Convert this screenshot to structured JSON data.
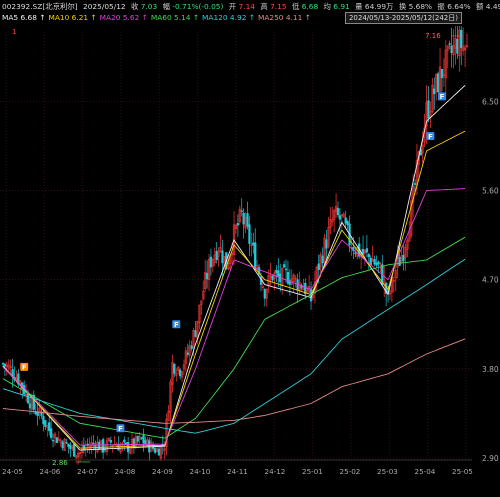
{
  "header": {
    "symbol": "002392.SZ[北京利尔]",
    "date": "2025/05/12",
    "close_label": "收",
    "close": "7.03",
    "change_label": "幅",
    "change": "-0.71%(-0.05)",
    "open_label": "开",
    "open": "7.14",
    "high_label": "高",
    "high": "7.15",
    "low_label": "低",
    "low": "6.68",
    "avg_label": "均",
    "avg": "6.91",
    "volume_label": "量",
    "volume": "64.99万",
    "turnover_label": "换",
    "turnover": "5.68%",
    "amplitude_label": "振",
    "amplitude": "6.64%",
    "amount_label": "额",
    "amount": "4.49亿",
    "range": "2024/05/13-2025/05/12(242日)"
  },
  "ma_legend": [
    {
      "label": "MA5",
      "value": "6.68",
      "arrow": "↑",
      "color": "#f0f0f0"
    },
    {
      "label": "MA10",
      "value": "6.21",
      "arrow": "↑",
      "color": "#f5d300"
    },
    {
      "label": "MA20",
      "value": "5.62",
      "arrow": "↑",
      "color": "#e040e0"
    },
    {
      "label": "MA60",
      "value": "5.14",
      "arrow": "↑",
      "color": "#3cdc50"
    },
    {
      "label": "MA120",
      "value": "4.92",
      "arrow": "↑",
      "color": "#2fd0d8"
    },
    {
      "label": "MA250",
      "value": "4.11",
      "arrow": "↑",
      "color": "#e48a8a"
    }
  ],
  "colors": {
    "up": "#ff3838",
    "down": "#20c8d8",
    "grid": "#2a0a0a",
    "axis_text": "#aaaaaa"
  },
  "annotations": {
    "high": "7.16",
    "low": "2.86",
    "top_left_marker": "1"
  },
  "signal_badge": "F",
  "chart_data": {
    "type": "candlestick",
    "x_ticks": [
      "24-05",
      "24-06",
      "24-07",
      "24-08",
      "24-09",
      "24-10",
      "24-11",
      "24-12",
      "25-01",
      "25-02",
      "25-03",
      "25-04",
      "25-05"
    ],
    "y_ticks": [
      "6.50",
      "5.60",
      "4.70",
      "3.80",
      "2.90"
    ],
    "y_tick_values": [
      6.5,
      5.6,
      4.7,
      3.8,
      2.9
    ],
    "ylim": [
      2.9,
      7.2
    ],
    "close_path": [
      [
        0,
        3.85
      ],
      [
        4,
        3.8
      ],
      [
        8,
        3.7
      ],
      [
        12,
        3.55
      ],
      [
        16,
        3.4
      ],
      [
        20,
        3.32
      ],
      [
        24,
        3.18
      ],
      [
        28,
        3.1
      ],
      [
        32,
        3.05
      ],
      [
        36,
        2.98
      ],
      [
        40,
        2.95
      ],
      [
        44,
        3.02
      ],
      [
        48,
        3.05
      ],
      [
        52,
        3.0
      ],
      [
        56,
        3.06
      ],
      [
        60,
        3.03
      ],
      [
        64,
        3.0
      ],
      [
        68,
        3.04
      ],
      [
        72,
        3.08
      ],
      [
        76,
        3.02
      ],
      [
        80,
        2.98
      ],
      [
        84,
        3.04
      ],
      [
        88,
        3.85
      ],
      [
        92,
        3.8
      ],
      [
        96,
        3.95
      ],
      [
        100,
        4.2
      ],
      [
        104,
        4.6
      ],
      [
        108,
        4.9
      ],
      [
        112,
        5.05
      ],
      [
        116,
        4.85
      ],
      [
        120,
        5.15
      ],
      [
        124,
        5.35
      ],
      [
        128,
        5.1
      ],
      [
        132,
        4.85
      ],
      [
        136,
        4.6
      ],
      [
        140,
        4.75
      ],
      [
        144,
        4.7
      ],
      [
        148,
        4.75
      ],
      [
        152,
        4.68
      ],
      [
        156,
        4.65
      ],
      [
        160,
        4.5
      ],
      [
        164,
        4.85
      ],
      [
        168,
        5.1
      ],
      [
        172,
        5.35
      ],
      [
        176,
        5.3
      ],
      [
        180,
        5.1
      ],
      [
        184,
        5.0
      ],
      [
        188,
        4.95
      ],
      [
        192,
        4.9
      ],
      [
        196,
        4.8
      ],
      [
        200,
        4.5
      ],
      [
        204,
        4.8
      ],
      [
        208,
        5.0
      ],
      [
        212,
        5.4
      ],
      [
        216,
        5.9
      ],
      [
        220,
        6.4
      ],
      [
        224,
        6.6
      ],
      [
        228,
        6.8
      ],
      [
        232,
        6.95
      ],
      [
        236,
        7.1
      ],
      [
        241,
        7.03
      ]
    ],
    "ma_paths": {
      "MA5": [
        [
          0,
          3.83
        ],
        [
          40,
          2.98
        ],
        [
          84,
          3.02
        ],
        [
          100,
          4.05
        ],
        [
          120,
          5.1
        ],
        [
          136,
          4.65
        ],
        [
          160,
          4.52
        ],
        [
          176,
          5.28
        ],
        [
          200,
          4.55
        ],
        [
          220,
          6.3
        ],
        [
          241,
          6.68
        ]
      ],
      "MA10": [
        [
          0,
          3.82
        ],
        [
          40,
          3.0
        ],
        [
          84,
          3.03
        ],
        [
          100,
          3.95
        ],
        [
          120,
          5.05
        ],
        [
          136,
          4.7
        ],
        [
          160,
          4.55
        ],
        [
          176,
          5.2
        ],
        [
          200,
          4.6
        ],
        [
          220,
          6.0
        ],
        [
          241,
          6.21
        ]
      ],
      "MA20": [
        [
          0,
          3.82
        ],
        [
          40,
          3.03
        ],
        [
          84,
          3.04
        ],
        [
          100,
          3.8
        ],
        [
          120,
          4.9
        ],
        [
          136,
          4.78
        ],
        [
          160,
          4.6
        ],
        [
          176,
          5.1
        ],
        [
          200,
          4.7
        ],
        [
          220,
          5.6
        ],
        [
          241,
          5.62
        ]
      ],
      "MA60": [
        [
          0,
          3.7
        ],
        [
          40,
          3.25
        ],
        [
          84,
          3.1
        ],
        [
          100,
          3.3
        ],
        [
          120,
          3.8
        ],
        [
          136,
          4.3
        ],
        [
          160,
          4.55
        ],
        [
          176,
          4.72
        ],
        [
          200,
          4.85
        ],
        [
          220,
          4.9
        ],
        [
          241,
          5.14
        ]
      ],
      "MA120": [
        [
          0,
          3.6
        ],
        [
          40,
          3.35
        ],
        [
          84,
          3.2
        ],
        [
          100,
          3.15
        ],
        [
          120,
          3.25
        ],
        [
          136,
          3.45
        ],
        [
          160,
          3.75
        ],
        [
          176,
          4.1
        ],
        [
          200,
          4.4
        ],
        [
          220,
          4.65
        ],
        [
          241,
          4.92
        ]
      ],
      "MA250": [
        [
          0,
          3.4
        ],
        [
          40,
          3.32
        ],
        [
          84,
          3.25
        ],
        [
          100,
          3.26
        ],
        [
          120,
          3.28
        ],
        [
          136,
          3.33
        ],
        [
          160,
          3.45
        ],
        [
          176,
          3.62
        ],
        [
          200,
          3.75
        ],
        [
          220,
          3.95
        ],
        [
          241,
          4.11
        ]
      ]
    }
  }
}
